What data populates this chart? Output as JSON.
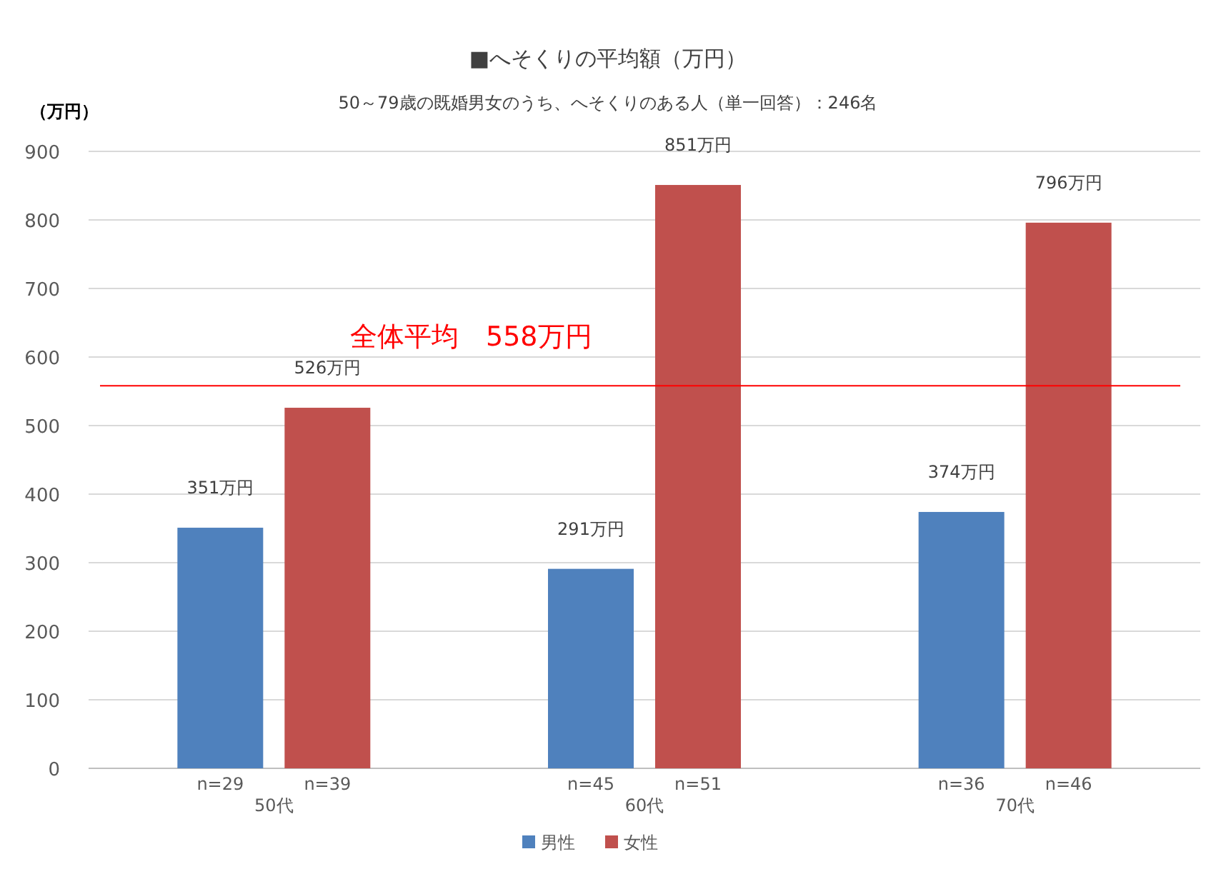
{
  "chart_data": {
    "type": "bar",
    "title": "■へそくりの平均額（万円）",
    "subtitle": "50～79歳の既婚男女のうち、へそくりのある人（単一回答）：246名",
    "ylabel": "（万円）",
    "categories": [
      "50代",
      "60代",
      "70代"
    ],
    "series": [
      {
        "name": "男性",
        "color": "#4f81bd",
        "values": [
          351,
          291,
          374
        ],
        "value_labels": [
          "351万円",
          "291万円",
          "374万円"
        ]
      },
      {
        "name": "女性",
        "color": "#c0504d",
        "values": [
          526,
          851,
          796
        ],
        "value_labels": [
          "526万円",
          "851万円",
          "796万円"
        ]
      }
    ],
    "ylim": [
      0,
      900
    ],
    "yticks": [
      0,
      100,
      200,
      300,
      400,
      500,
      600,
      700,
      800,
      900
    ],
    "grid": "y",
    "legend": "bottom",
    "ref_lines": [
      {
        "axis": "y",
        "value": 558,
        "label": "全体平均　558万円",
        "color": "#ff0000"
      }
    ],
    "annotations": [
      "n=29",
      "n=39",
      "n=45",
      "n=51",
      "n=36",
      "n=46"
    ]
  }
}
